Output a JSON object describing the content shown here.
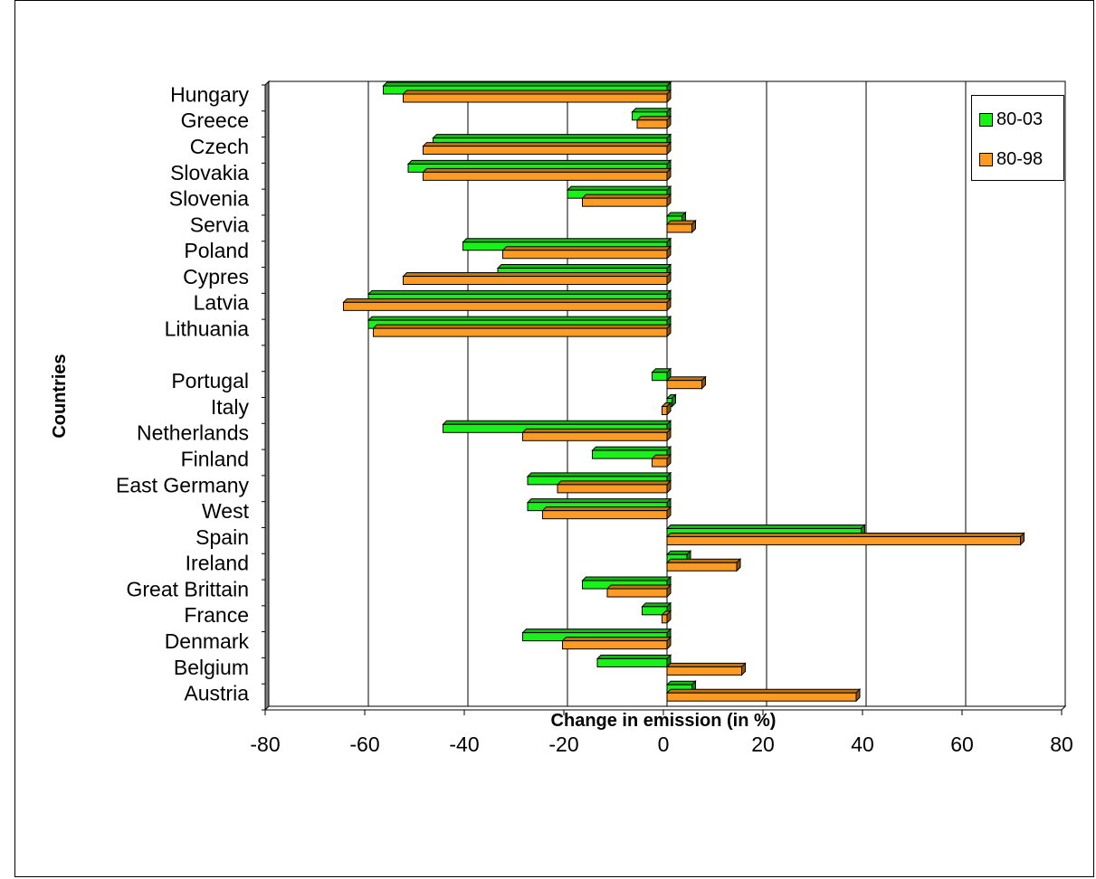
{
  "chart_data": {
    "type": "bar",
    "orientation": "horizontal",
    "title": "",
    "xlabel": "Change in emission (in %)",
    "ylabel": "Countries",
    "xlim": [
      -80,
      80
    ],
    "xticks": [
      "-80",
      "-60",
      "-40",
      "-20",
      "0",
      "20",
      "40",
      "60",
      "80"
    ],
    "grid": "vertical",
    "legend_position": "top-right",
    "categories": [
      "Hungary",
      "Greece",
      "Czech",
      "Slovakia",
      "Slovenia",
      "Servia",
      "Poland",
      "Cypres",
      "Latvia",
      "Lithuania",
      "",
      "Portugal",
      "Italy",
      "Netherlands",
      "Finland",
      "East Germany",
      "West",
      "Spain",
      "Ireland",
      "Great Brittain",
      "France",
      "Denmark",
      "Belgium",
      "Austria"
    ],
    "series": [
      {
        "name": "80-03",
        "color": "#19f219",
        "values": [
          -57,
          -7,
          -47,
          -52,
          -20,
          3,
          -41,
          -34,
          -60,
          -60,
          null,
          -3,
          1,
          -45,
          -15,
          -28,
          -28,
          39,
          4,
          -17,
          -5,
          -29,
          -14,
          5
        ]
      },
      {
        "name": "80-98",
        "color": "#ff9a22",
        "values": [
          -53,
          -6,
          -49,
          -49,
          -17,
          5,
          -33,
          -53,
          -65,
          -59,
          null,
          7,
          -1,
          -29,
          -3,
          -22,
          -25,
          71,
          14,
          -12,
          -1,
          -21,
          15,
          38
        ]
      }
    ]
  }
}
